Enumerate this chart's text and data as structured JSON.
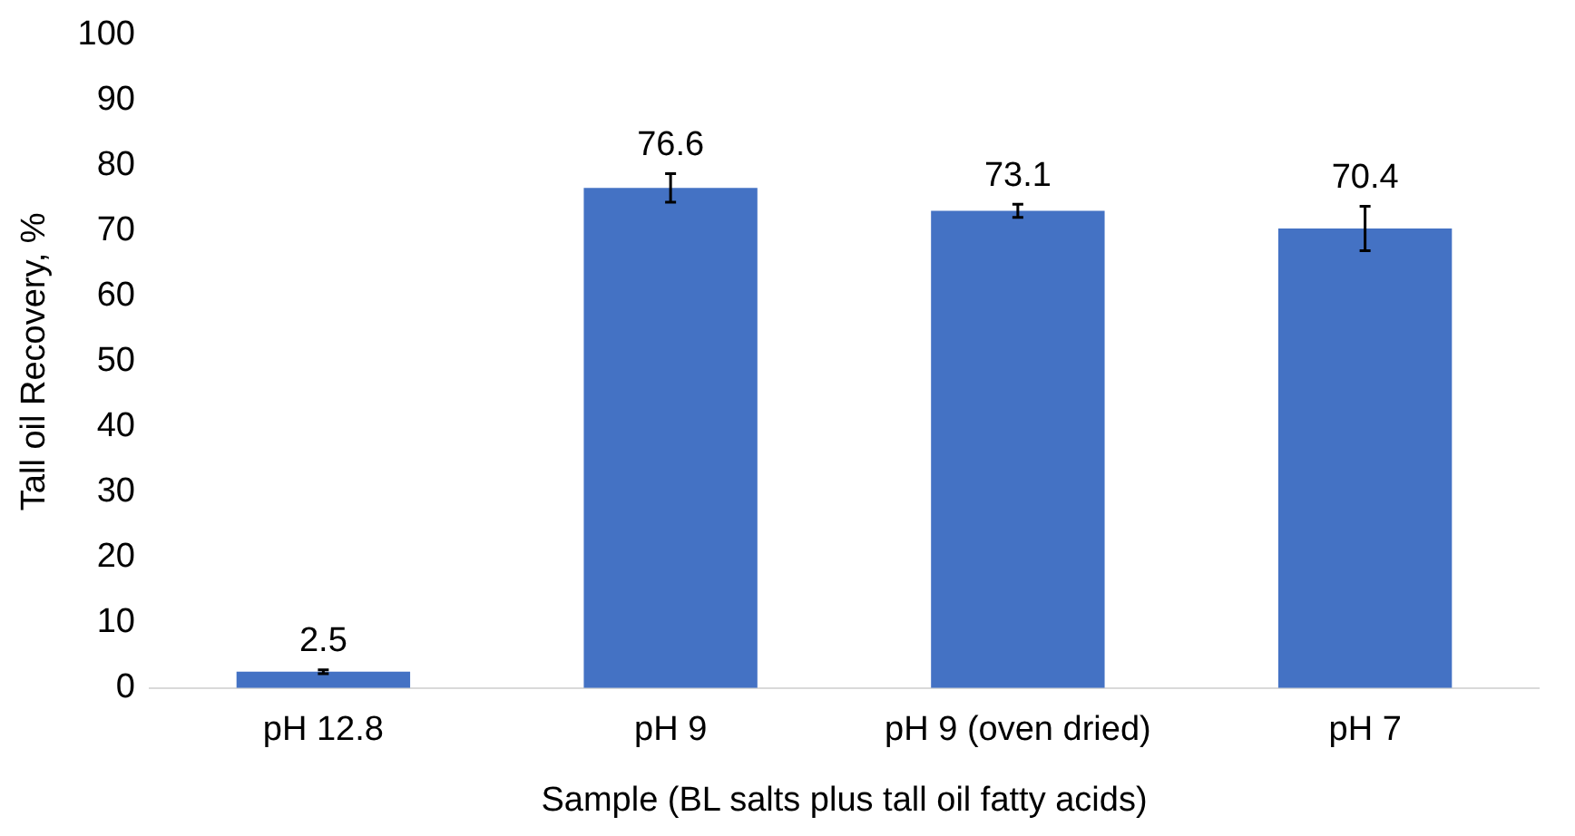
{
  "chart_data": {
    "type": "bar",
    "xlabel": "Sample (BL salts plus tall oil fatty acids)",
    "ylabel": "Tall oil Recovery, %",
    "categories": [
      "pH 12.8",
      "pH 9",
      "pH 9 (oven dried)",
      "pH 7"
    ],
    "values": [
      2.5,
      76.6,
      73.1,
      70.4
    ],
    "errors": [
      0.3,
      2.2,
      1,
      3.4
    ],
    "color": "#4472c4",
    "ylim": [
      0,
      100
    ],
    "yticks": [
      0,
      10,
      20,
      30,
      40,
      50,
      60,
      70,
      80,
      90,
      100
    ],
    "grid": false,
    "data_labels": true
  }
}
